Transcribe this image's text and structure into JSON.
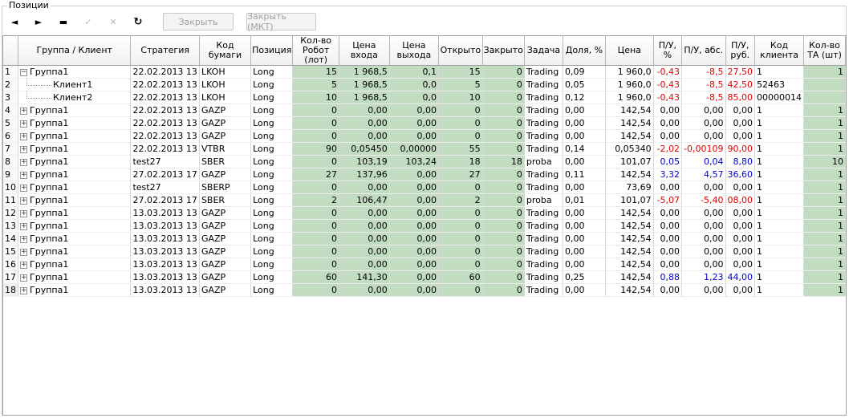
{
  "panel": {
    "title": "Позиции"
  },
  "toolbar": {
    "buttons": [
      {
        "name": "prev-icon",
        "glyph": "◄"
      },
      {
        "name": "next-icon",
        "glyph": "►"
      },
      {
        "name": "remove-icon",
        "glyph": "▬"
      },
      {
        "name": "check-icon",
        "glyph": "✓"
      },
      {
        "name": "cross-icon",
        "glyph": "✕"
      },
      {
        "name": "refresh-icon",
        "glyph": "↻"
      }
    ],
    "close_label": "Закрыть",
    "close_mkt_label": "Закрыть (МКТ)"
  },
  "table": {
    "columns": [
      "",
      "Группа / Клиент",
      "Стратегия",
      "Код бумаги",
      "Позиция",
      "Кол-во Робот (лот)",
      "Цена входа",
      "Цена выхода",
      "Открыто",
      "Закрыто",
      "Задача",
      "Доля, %",
      "Цена",
      "П/У, %",
      "П/У, абс.",
      "П/У, руб.",
      "Код клиента",
      "Кол-во ТА (шт)"
    ],
    "rows": [
      {
        "n": "1",
        "tree": "minus",
        "client": "Группа1",
        "strategy": "22.02.2013 13",
        "code": "LKOH",
        "pos": "Long",
        "qty": "15",
        "entry": "1 968,5",
        "exit": "0,1",
        "open": "15",
        "closed": "0",
        "task": "Trading",
        "share": "0,09",
        "price": "1 960,0",
        "pl_pct": "-0,43",
        "pl_abs": "-8,5",
        "pl_rub": "27,50",
        "client_code": "1",
        "ta": "1",
        "pl_color": "neg"
      },
      {
        "n": "2",
        "tree": "child",
        "client": "Клиент1",
        "strategy": "22.02.2013 13",
        "code": "LKOH",
        "pos": "Long",
        "qty": "5",
        "entry": "1 968,5",
        "exit": "0,0",
        "open": "5",
        "closed": "0",
        "task": "Trading",
        "share": "0,05",
        "price": "1 960,0",
        "pl_pct": "-0,43",
        "pl_abs": "-8,5",
        "pl_rub": "42,50",
        "client_code": "52463",
        "ta": "",
        "pl_color": "neg"
      },
      {
        "n": "3",
        "tree": "child",
        "client": "Клиент2",
        "strategy": "22.02.2013 13",
        "code": "LKOH",
        "pos": "Long",
        "qty": "10",
        "entry": "1 968,5",
        "exit": "0,0",
        "open": "10",
        "closed": "0",
        "task": "Trading",
        "share": "0,12",
        "price": "1 960,0",
        "pl_pct": "-0,43",
        "pl_abs": "-8,5",
        "pl_rub": "85,00",
        "client_code": "00000014",
        "ta": "",
        "pl_color": "neg"
      },
      {
        "n": "4",
        "tree": "plus",
        "client": "Группа1",
        "strategy": "22.02.2013 13",
        "code": "GAZP",
        "pos": "Long",
        "qty": "0",
        "entry": "0,00",
        "exit": "0,00",
        "open": "0",
        "closed": "0",
        "task": "Trading",
        "share": "0,00",
        "price": "142,54",
        "pl_pct": "0,00",
        "pl_abs": "0,00",
        "pl_rub": "0,00",
        "client_code": "1",
        "ta": "1",
        "pl_color": ""
      },
      {
        "n": "5",
        "tree": "plus",
        "client": "Группа1",
        "strategy": "22.02.2013 13",
        "code": "GAZP",
        "pos": "Long",
        "qty": "0",
        "entry": "0,00",
        "exit": "0,00",
        "open": "0",
        "closed": "0",
        "task": "Trading",
        "share": "0,00",
        "price": "142,54",
        "pl_pct": "0,00",
        "pl_abs": "0,00",
        "pl_rub": "0,00",
        "client_code": "1",
        "ta": "1",
        "pl_color": ""
      },
      {
        "n": "6",
        "tree": "plus",
        "client": "Группа1",
        "strategy": "22.02.2013 13",
        "code": "GAZP",
        "pos": "Long",
        "qty": "0",
        "entry": "0,00",
        "exit": "0,00",
        "open": "0",
        "closed": "0",
        "task": "Trading",
        "share": "0,00",
        "price": "142,54",
        "pl_pct": "0,00",
        "pl_abs": "0,00",
        "pl_rub": "0,00",
        "client_code": "1",
        "ta": "1",
        "pl_color": ""
      },
      {
        "n": "7",
        "tree": "plus",
        "client": "Группа1",
        "strategy": "22.02.2013 13",
        "code": "VTBR",
        "pos": "Long",
        "qty": "90",
        "entry": "0,05450",
        "exit": "0,00000",
        "open": "55",
        "closed": "0",
        "task": "Trading",
        "share": "0,14",
        "price": "0,05340",
        "pl_pct": "-2,02",
        "pl_abs": "-0,00109",
        "pl_rub": "90,00",
        "client_code": "1",
        "ta": "1",
        "pl_color": "neg"
      },
      {
        "n": "8",
        "tree": "plus",
        "client": "Группа1",
        "strategy": "test27",
        "code": "SBER",
        "pos": "Long",
        "qty": "0",
        "entry": "103,19",
        "exit": "103,24",
        "open": "18",
        "closed": "18",
        "task": "proba",
        "share": "0,00",
        "price": "101,07",
        "pl_pct": "0,05",
        "pl_abs": "0,04",
        "pl_rub": "8,80",
        "client_code": "1",
        "ta": "10",
        "pl_color": "pos"
      },
      {
        "n": "9",
        "tree": "plus",
        "client": "Группа1",
        "strategy": "27.02.2013 17",
        "code": "GAZP",
        "pos": "Long",
        "qty": "27",
        "entry": "137,96",
        "exit": "0,00",
        "open": "27",
        "closed": "0",
        "task": "Trading",
        "share": "0,11",
        "price": "142,54",
        "pl_pct": "3,32",
        "pl_abs": "4,57",
        "pl_rub": "36,60",
        "client_code": "1",
        "ta": "1",
        "pl_color": "pos"
      },
      {
        "n": "10",
        "tree": "plus",
        "client": "Группа1",
        "strategy": "test27",
        "code": "SBERP",
        "pos": "Long",
        "qty": "0",
        "entry": "0,00",
        "exit": "0,00",
        "open": "0",
        "closed": "0",
        "task": "Trading",
        "share": "0,00",
        "price": "73,69",
        "pl_pct": "0,00",
        "pl_abs": "0,00",
        "pl_rub": "0,00",
        "client_code": "1",
        "ta": "1",
        "pl_color": ""
      },
      {
        "n": "11",
        "tree": "plus",
        "client": "Группа1",
        "strategy": "27.02.2013 17",
        "code": "SBER",
        "pos": "Long",
        "qty": "2",
        "entry": "106,47",
        "exit": "0,00",
        "open": "2",
        "closed": "0",
        "task": "proba",
        "share": "0,01",
        "price": "101,07",
        "pl_pct": "-5,07",
        "pl_abs": "-5,40",
        "pl_rub": "08,00",
        "client_code": "1",
        "ta": "1",
        "pl_color": "neg"
      },
      {
        "n": "12",
        "tree": "plus",
        "client": "Группа1",
        "strategy": "13.03.2013 13",
        "code": "GAZP",
        "pos": "Long",
        "qty": "0",
        "entry": "0,00",
        "exit": "0,00",
        "open": "0",
        "closed": "0",
        "task": "Trading",
        "share": "0,00",
        "price": "142,54",
        "pl_pct": "0,00",
        "pl_abs": "0,00",
        "pl_rub": "0,00",
        "client_code": "1",
        "ta": "1",
        "pl_color": ""
      },
      {
        "n": "13",
        "tree": "plus",
        "client": "Группа1",
        "strategy": "13.03.2013 13",
        "code": "GAZP",
        "pos": "Long",
        "qty": "0",
        "entry": "0,00",
        "exit": "0,00",
        "open": "0",
        "closed": "0",
        "task": "Trading",
        "share": "0,00",
        "price": "142,54",
        "pl_pct": "0,00",
        "pl_abs": "0,00",
        "pl_rub": "0,00",
        "client_code": "1",
        "ta": "1",
        "pl_color": ""
      },
      {
        "n": "14",
        "tree": "plus",
        "client": "Группа1",
        "strategy": "13.03.2013 13",
        "code": "GAZP",
        "pos": "Long",
        "qty": "0",
        "entry": "0,00",
        "exit": "0,00",
        "open": "0",
        "closed": "0",
        "task": "Trading",
        "share": "0,00",
        "price": "142,54",
        "pl_pct": "0,00",
        "pl_abs": "0,00",
        "pl_rub": "0,00",
        "client_code": "1",
        "ta": "1",
        "pl_color": ""
      },
      {
        "n": "15",
        "tree": "plus",
        "client": "Группа1",
        "strategy": "13.03.2013 13",
        "code": "GAZP",
        "pos": "Long",
        "qty": "0",
        "entry": "0,00",
        "exit": "0,00",
        "open": "0",
        "closed": "0",
        "task": "Trading",
        "share": "0,00",
        "price": "142,54",
        "pl_pct": "0,00",
        "pl_abs": "0,00",
        "pl_rub": "0,00",
        "client_code": "1",
        "ta": "1",
        "pl_color": ""
      },
      {
        "n": "16",
        "tree": "plus",
        "client": "Группа1",
        "strategy": "13.03.2013 13",
        "code": "GAZP",
        "pos": "Long",
        "qty": "0",
        "entry": "0,00",
        "exit": "0,00",
        "open": "0",
        "closed": "0",
        "task": "Trading",
        "share": "0,00",
        "price": "142,54",
        "pl_pct": "0,00",
        "pl_abs": "0,00",
        "pl_rub": "0,00",
        "client_code": "1",
        "ta": "1",
        "pl_color": ""
      },
      {
        "n": "17",
        "tree": "plus",
        "client": "Группа1",
        "strategy": "13.03.2013 13",
        "code": "GAZP",
        "pos": "Long",
        "qty": "60",
        "entry": "141,30",
        "exit": "0,00",
        "open": "60",
        "closed": "0",
        "task": "Trading",
        "share": "0,25",
        "price": "142,54",
        "pl_pct": "0,88",
        "pl_abs": "1,23",
        "pl_rub": "44,00",
        "client_code": "1",
        "ta": "1",
        "pl_color": "pos"
      },
      {
        "n": "18",
        "tree": "plus",
        "client": "Группа1",
        "strategy": "13.03.2013 13",
        "code": "GAZP",
        "pos": "Long",
        "qty": "0",
        "entry": "0,00",
        "exit": "0,00",
        "open": "0",
        "closed": "0",
        "task": "Trading",
        "share": "0,00",
        "price": "142,54",
        "pl_pct": "0,00",
        "pl_abs": "0,00",
        "pl_rub": "0,00",
        "client_code": "1",
        "ta": "1",
        "pl_color": ""
      }
    ]
  }
}
